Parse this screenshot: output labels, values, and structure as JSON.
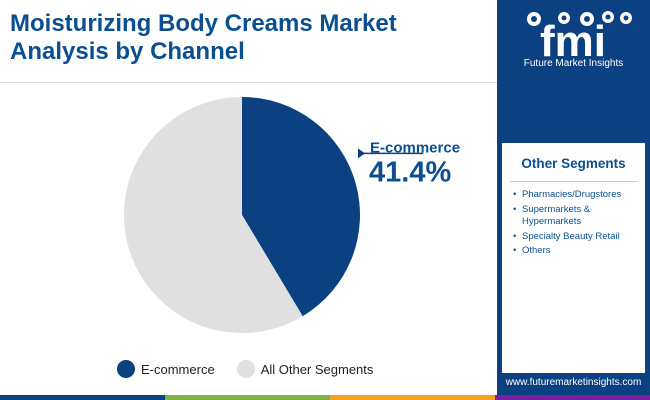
{
  "header": {
    "title_line1": "Moisturizing Body Creams Market",
    "title_line2": "Analysis by Channel"
  },
  "brand": {
    "logo_text": "fmi",
    "caption": "Future Market Insights",
    "website": "www.futuremarketinsights.com",
    "logo_icon": "fmi-logo-icon"
  },
  "other_segments": {
    "title": "Other Segments",
    "items": [
      "Pharmacies/Drugstores",
      "Supermarkets & Hypermarkets",
      "Specialty Beauty Retail",
      "Others"
    ]
  },
  "colors": {
    "ecommerce": "#0b4180",
    "other": "#e0e0e0",
    "title": "#0b4f91",
    "panel": "#0b4180",
    "bottom_bar": [
      "#0b4180",
      "#7cb342",
      "#f4a020",
      "#7b1fa2"
    ]
  },
  "chart_data": {
    "type": "pie",
    "series": [
      {
        "name": "E-commerce",
        "value": 41.4
      },
      {
        "name": "All Other Segments",
        "value": 58.6
      }
    ],
    "annotation": {
      "label": "E-commerce",
      "value": "41.4%"
    },
    "legend": [
      "E-commerce",
      "All Other Segments"
    ],
    "legend_position": "bottom"
  }
}
